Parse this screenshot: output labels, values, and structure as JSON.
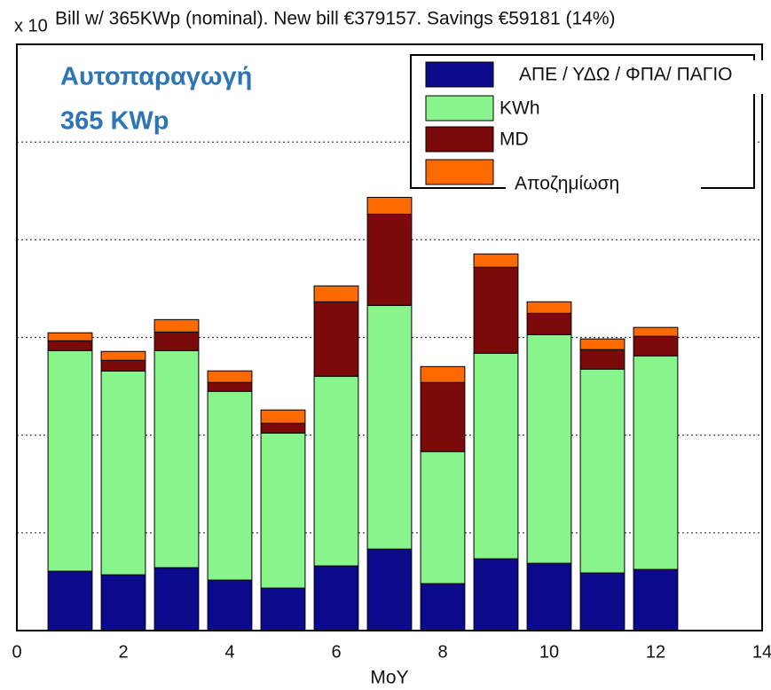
{
  "chart_data": {
    "type": "stacked_bar",
    "title": "Bill w/ 365KWp (nominal). New bill €379157. Savings €59181 (14%)",
    "y_multiplier": "x 10",
    "annotation": [
      "Αυτοπαραγωγή",
      "365 KWp"
    ],
    "xlabel": "MoY",
    "x": [
      1,
      2,
      3,
      4,
      5,
      6,
      7,
      8,
      9,
      10,
      11,
      12
    ],
    "series": [
      {
        "name": "ΑΠΕ / ΥΔΩ / ΦΠΑ/ ΠΑΓΙΟ",
        "color": "#0a0a8a",
        "values": [
          6080,
          5710,
          6440,
          5170,
          4350,
          6620,
          8340,
          4810,
          7350,
          6890,
          5900,
          6260
        ]
      },
      {
        "name": "KWh",
        "color": "#88f58c",
        "values": [
          22580,
          20860,
          22220,
          19320,
          15870,
          19410,
          24940,
          13510,
          21040,
          23400,
          20860,
          21860
        ]
      },
      {
        "name": "MD",
        "color": "#7d0a0a",
        "values": [
          1000,
          1090,
          1900,
          910,
          1000,
          7620,
          9340,
          7070,
          8800,
          2180,
          2000,
          2000
        ]
      },
      {
        "name": "Αποζημίωση",
        "color": "#ff6a00",
        "values": [
          820,
          910,
          1270,
          1180,
          1360,
          1630,
          1720,
          1630,
          1360,
          1180,
          1090,
          910
        ]
      }
    ],
    "xlim": [
      0,
      14
    ],
    "xticks": [
      0,
      2,
      4,
      6,
      8,
      10,
      12,
      14
    ],
    "ylim": [
      0,
      60000
    ],
    "yticks": [
      0,
      10000,
      20000,
      30000,
      40000,
      50000,
      60000
    ],
    "grid": true
  }
}
